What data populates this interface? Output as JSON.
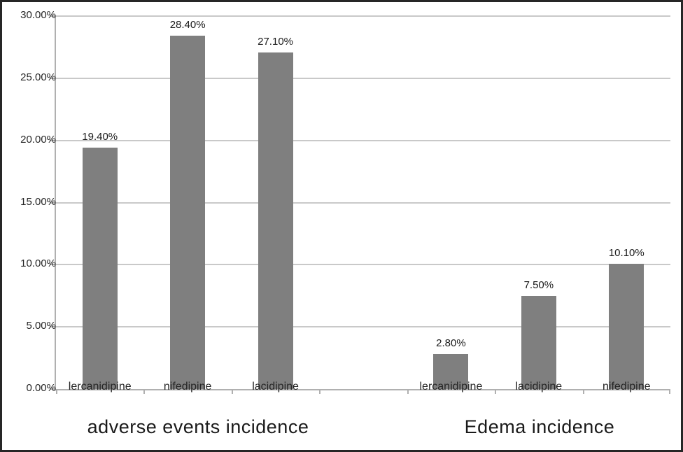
{
  "chart_data": {
    "type": "bar",
    "title": "",
    "xlabel": "",
    "ylabel": "",
    "ylim": [
      0,
      30
    ],
    "ytick_step": 5,
    "ytick_labels": [
      "0.00%",
      "5.00%",
      "10.00%",
      "15.00%",
      "20.00%",
      "25.00%",
      "30.00%"
    ],
    "grid": true,
    "legend": false,
    "bar_color": "#7f7f7f",
    "groups": [
      {
        "title": "adverse events incidence",
        "categories": [
          "lercanidipine",
          "nifedipine",
          "lacidipine"
        ],
        "values": [
          19.4,
          28.4,
          27.1
        ],
        "value_labels": [
          "19.40%",
          "28.40%",
          "27.10%"
        ]
      },
      {
        "title": "Edema incidence",
        "categories": [
          "lercanidipine",
          "lacidipine",
          "nifedipine"
        ],
        "values": [
          2.8,
          7.5,
          10.1
        ],
        "value_labels": [
          "2.80%",
          "7.50%",
          "10.10%"
        ]
      }
    ]
  },
  "colors": {
    "bar": "#7f7f7f",
    "gridline": "#c9c9c9",
    "axis": "#b0b0b0",
    "text": "#262626",
    "frame_border": "#262626",
    "background": "#ffffff"
  }
}
